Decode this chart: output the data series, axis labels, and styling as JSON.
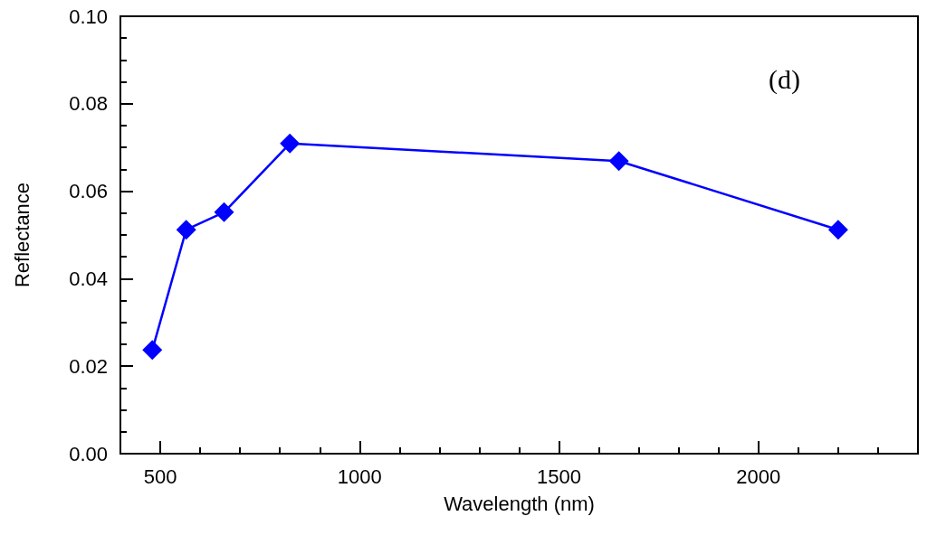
{
  "chart_data": {
    "type": "line",
    "xlabel": "Wavelength (nm)",
    "ylabel": "Reflectance",
    "annotations": [
      "(d)"
    ],
    "x": [
      480,
      565,
      660,
      825,
      1650,
      2200
    ],
    "series": [
      {
        "color": "#0000ff",
        "values": [
          0.0237,
          0.0512,
          0.0552,
          0.0709,
          0.0669,
          0.0512
        ]
      }
    ],
    "xlim": [
      400,
      2400
    ],
    "xticks": [
      500,
      1000,
      1500,
      2000
    ],
    "ylim": [
      0,
      0.1
    ],
    "yticks": [
      {
        "value": 0,
        "label": "0.00"
      },
      {
        "value": 0.02,
        "label": "0.02"
      },
      {
        "value": 0.04,
        "label": "0.04"
      },
      {
        "value": 0.06,
        "label": "0.06"
      },
      {
        "value": 0.08,
        "label": "0.08"
      },
      {
        "value": 0.1,
        "label": "0.10"
      }
    ],
    "marker": "diamond",
    "line_style": "solid",
    "grid": false
  }
}
